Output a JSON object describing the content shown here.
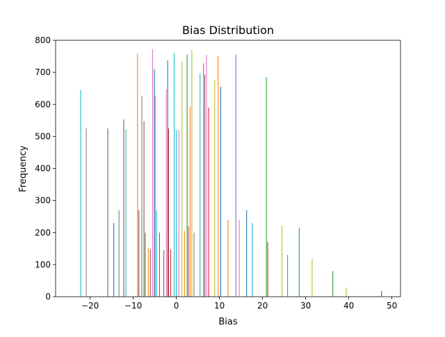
{
  "chart_data": {
    "type": "bar",
    "title": "Bias Distribution",
    "xlabel": "Bias",
    "ylabel": "Frequency",
    "xlim": [
      -28,
      52
    ],
    "ylim": [
      0,
      800
    ],
    "xticks": [
      -20,
      -10,
      0,
      10,
      20,
      30,
      40,
      50
    ],
    "yticks": [
      0,
      100,
      200,
      300,
      400,
      500,
      600,
      700,
      800
    ],
    "grid": false,
    "legend": "none",
    "palette": [
      "#1f77b4",
      "#ff7f0e",
      "#2ca02c",
      "#d62728",
      "#9467bd",
      "#8c564b",
      "#e377c2",
      "#7f7f7f",
      "#bcbd22",
      "#17becf"
    ],
    "bars": [
      {
        "x": -22.2,
        "y": 645,
        "c": 9
      },
      {
        "x": -20.9,
        "y": 525,
        "c": 7
      },
      {
        "x": -15.9,
        "y": 525,
        "c": 5
      },
      {
        "x": -14.5,
        "y": 230,
        "c": 0
      },
      {
        "x": -13.3,
        "y": 270,
        "c": 7
      },
      {
        "x": -12.2,
        "y": 553,
        "c": 5
      },
      {
        "x": -11.7,
        "y": 522,
        "c": 9
      },
      {
        "x": -9.0,
        "y": 758,
        "c": 1
      },
      {
        "x": -8.7,
        "y": 270,
        "c": 5
      },
      {
        "x": -8.0,
        "y": 625,
        "c": 7
      },
      {
        "x": -7.5,
        "y": 548,
        "c": 5
      },
      {
        "x": -7.2,
        "y": 200,
        "c": 2
      },
      {
        "x": -6.5,
        "y": 152,
        "c": 1
      },
      {
        "x": -6.0,
        "y": 148,
        "c": 5
      },
      {
        "x": -5.5,
        "y": 772,
        "c": 6
      },
      {
        "x": -5.1,
        "y": 710,
        "c": 0
      },
      {
        "x": -4.9,
        "y": 628,
        "c": 6
      },
      {
        "x": -4.6,
        "y": 270,
        "c": 9
      },
      {
        "x": -3.9,
        "y": 200,
        "c": 5
      },
      {
        "x": -2.9,
        "y": 145,
        "c": 5
      },
      {
        "x": -2.3,
        "y": 647,
        "c": 6
      },
      {
        "x": -2.0,
        "y": 737,
        "c": 0
      },
      {
        "x": -1.8,
        "y": 525,
        "c": 3
      },
      {
        "x": -1.3,
        "y": 147,
        "c": 3
      },
      {
        "x": -0.5,
        "y": 760,
        "c": 9
      },
      {
        "x": 0.0,
        "y": 520,
        "c": 9
      },
      {
        "x": 0.6,
        "y": 520,
        "c": 6
      },
      {
        "x": 1.3,
        "y": 733,
        "c": 8
      },
      {
        "x": 1.9,
        "y": 205,
        "c": 1
      },
      {
        "x": 2.5,
        "y": 755,
        "c": 2
      },
      {
        "x": 2.8,
        "y": 220,
        "c": 5
      },
      {
        "x": 3.2,
        "y": 593,
        "c": 1
      },
      {
        "x": 3.6,
        "y": 770,
        "c": 8
      },
      {
        "x": 4.1,
        "y": 200,
        "c": 7
      },
      {
        "x": 5.5,
        "y": 697,
        "c": 9
      },
      {
        "x": 6.3,
        "y": 728,
        "c": 4
      },
      {
        "x": 6.6,
        "y": 693,
        "c": 5
      },
      {
        "x": 7.0,
        "y": 755,
        "c": 6
      },
      {
        "x": 7.5,
        "y": 590,
        "c": 3
      },
      {
        "x": 8.9,
        "y": 675,
        "c": 8
      },
      {
        "x": 9.7,
        "y": 750,
        "c": 1
      },
      {
        "x": 10.3,
        "y": 655,
        "c": 0
      },
      {
        "x": 12.0,
        "y": 240,
        "c": 1
      },
      {
        "x": 13.8,
        "y": 755,
        "c": 4
      },
      {
        "x": 14.6,
        "y": 240,
        "c": 6
      },
      {
        "x": 16.3,
        "y": 270,
        "c": 0
      },
      {
        "x": 17.6,
        "y": 230,
        "c": 9
      },
      {
        "x": 20.9,
        "y": 685,
        "c": 2
      },
      {
        "x": 21.2,
        "y": 170,
        "c": 3
      },
      {
        "x": 24.5,
        "y": 222,
        "c": 8
      },
      {
        "x": 25.8,
        "y": 130,
        "c": 4
      },
      {
        "x": 28.5,
        "y": 215,
        "c": 2
      },
      {
        "x": 31.5,
        "y": 118,
        "c": 8
      },
      {
        "x": 36.3,
        "y": 80,
        "c": 2
      },
      {
        "x": 39.4,
        "y": 28,
        "c": 8
      },
      {
        "x": 47.6,
        "y": 18,
        "c": 3
      }
    ]
  }
}
